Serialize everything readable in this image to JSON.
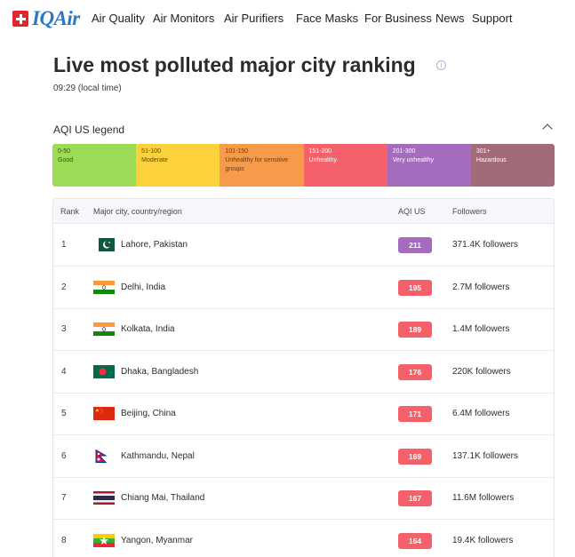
{
  "nav": {
    "brand": "IQAir",
    "items": [
      "Air Quality",
      "Air Monitors",
      "Air Purifiers",
      "Face Masks",
      "For Business",
      "News",
      "Support"
    ]
  },
  "header": {
    "title": "Live most polluted major city ranking",
    "time": "09:29 (local time)"
  },
  "legend": {
    "title": "AQI US legend",
    "segments": [
      {
        "range": "0-50",
        "label": "Good",
        "color": "#9cdb55",
        "text_color": "#3a4a1d"
      },
      {
        "range": "51-100",
        "label": "Moderate",
        "color": "#fbd13c",
        "text_color": "#5a4a10"
      },
      {
        "range": "101-150",
        "label": "Unhealthy for sensitive groups",
        "color": "#f79a4a",
        "text_color": "#6a3a10"
      },
      {
        "range": "151-200",
        "label": "Unhealthy",
        "color": "#f4616a",
        "text_color": "#ffffff"
      },
      {
        "range": "201-300",
        "label": "Very unhealthy",
        "color": "#a46bbf",
        "text_color": "#ffffff"
      },
      {
        "range": "301+",
        "label": "Hazardous",
        "color": "#a26b78",
        "text_color": "#ffffff"
      }
    ]
  },
  "table": {
    "headers": {
      "rank": "Rank",
      "city": "Major city, country/region",
      "aqi": "AQI US",
      "followers": "Followers"
    },
    "rows": [
      {
        "rank": "1",
        "flag": "pakistan",
        "city": "Lahore, Pakistan",
        "aqi": "211",
        "aqi_color": "#a46bbf",
        "followers": "371.4K followers"
      },
      {
        "rank": "2",
        "flag": "india",
        "city": "Delhi, India",
        "aqi": "195",
        "aqi_color": "#f4616a",
        "followers": "2.7M followers"
      },
      {
        "rank": "3",
        "flag": "india",
        "city": "Kolkata, India",
        "aqi": "189",
        "aqi_color": "#f4616a",
        "followers": "1.4M followers"
      },
      {
        "rank": "4",
        "flag": "bangladesh",
        "city": "Dhaka, Bangladesh",
        "aqi": "176",
        "aqi_color": "#f4616a",
        "followers": "220K followers"
      },
      {
        "rank": "5",
        "flag": "china",
        "city": "Beijing, China",
        "aqi": "171",
        "aqi_color": "#f4616a",
        "followers": "6.4M followers"
      },
      {
        "rank": "6",
        "flag": "nepal",
        "city": "Kathmandu, Nepal",
        "aqi": "169",
        "aqi_color": "#f4616a",
        "followers": "137.1K followers"
      },
      {
        "rank": "7",
        "flag": "thailand",
        "city": "Chiang Mai, Thailand",
        "aqi": "167",
        "aqi_color": "#f4616a",
        "followers": "11.6M followers"
      },
      {
        "rank": "8",
        "flag": "myanmar",
        "city": "Yangon, Myanmar",
        "aqi": "164",
        "aqi_color": "#f4616a",
        "followers": "19.4K followers"
      }
    ]
  }
}
